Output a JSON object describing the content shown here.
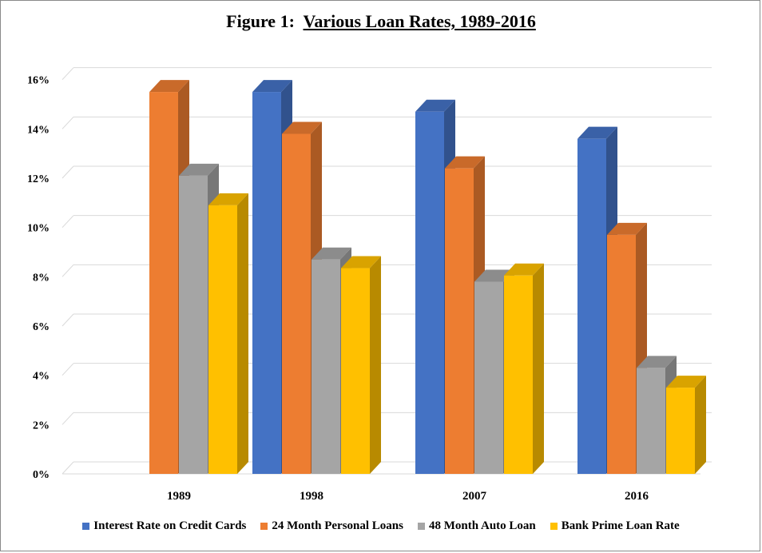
{
  "chart_data": {
    "type": "bar",
    "title_prefix": "Figure 1:",
    "title_main": "Various Loan Rates, 1989-2016",
    "categories": [
      "1989",
      "1998",
      "2007",
      "2016"
    ],
    "series": [
      {
        "name": "Interest Rate on Credit Cards",
        "color": "#4472C4",
        "values": [
          null,
          15.5,
          14.7,
          13.6
        ]
      },
      {
        "name": "24 Month Personal Loans",
        "color": "#ED7D31",
        "values": [
          15.5,
          13.8,
          12.4,
          9.7
        ]
      },
      {
        "name": "48 Month Auto Loan",
        "color": "#A5A5A5",
        "values": [
          12.1,
          8.7,
          7.8,
          4.3
        ]
      },
      {
        "name": "Bank Prime Loan Rate",
        "color": "#FFC000",
        "values": [
          10.9,
          8.35,
          8.05,
          3.5
        ]
      }
    ],
    "yticks": [
      "0%",
      "2%",
      "4%",
      "6%",
      "8%",
      "10%",
      "12%",
      "14%",
      "16%"
    ],
    "ylim": [
      0,
      16
    ],
    "grid": true,
    "legend_position": "bottom"
  }
}
